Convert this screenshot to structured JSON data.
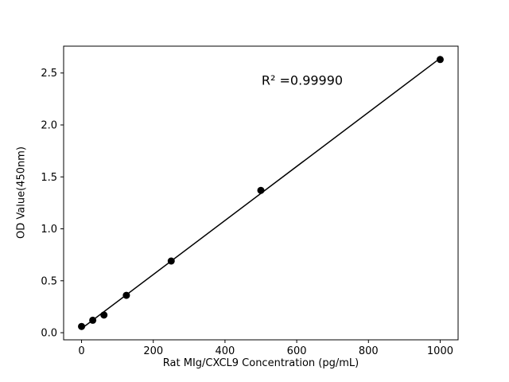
{
  "chart_data": {
    "type": "scatter",
    "x": [
      0,
      31.25,
      62.5,
      125,
      250,
      500,
      1000
    ],
    "y": [
      0.06,
      0.12,
      0.17,
      0.36,
      0.69,
      1.37,
      2.63
    ],
    "title": "",
    "xlabel": "Rat MIg/CXCL9 Concentration (pg/mL)",
    "ylabel": "OD Value(450nm)",
    "annotation": "R² =0.99990",
    "xlim": [
      -50,
      1050
    ],
    "ylim": [
      -0.0685,
      2.7585
    ],
    "x_ticks": [
      0,
      200,
      400,
      600,
      800,
      1000
    ],
    "x_tick_labels": [
      "0",
      "200",
      "400",
      "600",
      "800",
      "1000"
    ],
    "y_ticks": [
      0.0,
      0.5,
      1.0,
      1.5,
      2.0,
      2.5
    ],
    "y_tick_labels": [
      "0.0",
      "0.5",
      "1.0",
      "1.5",
      "2.0",
      "2.5"
    ],
    "grid": false,
    "legend": null,
    "fit_line": true,
    "line_color": "#000000",
    "marker_color": "#000000",
    "text_color": "#000000",
    "background_color": "#ffffff"
  }
}
